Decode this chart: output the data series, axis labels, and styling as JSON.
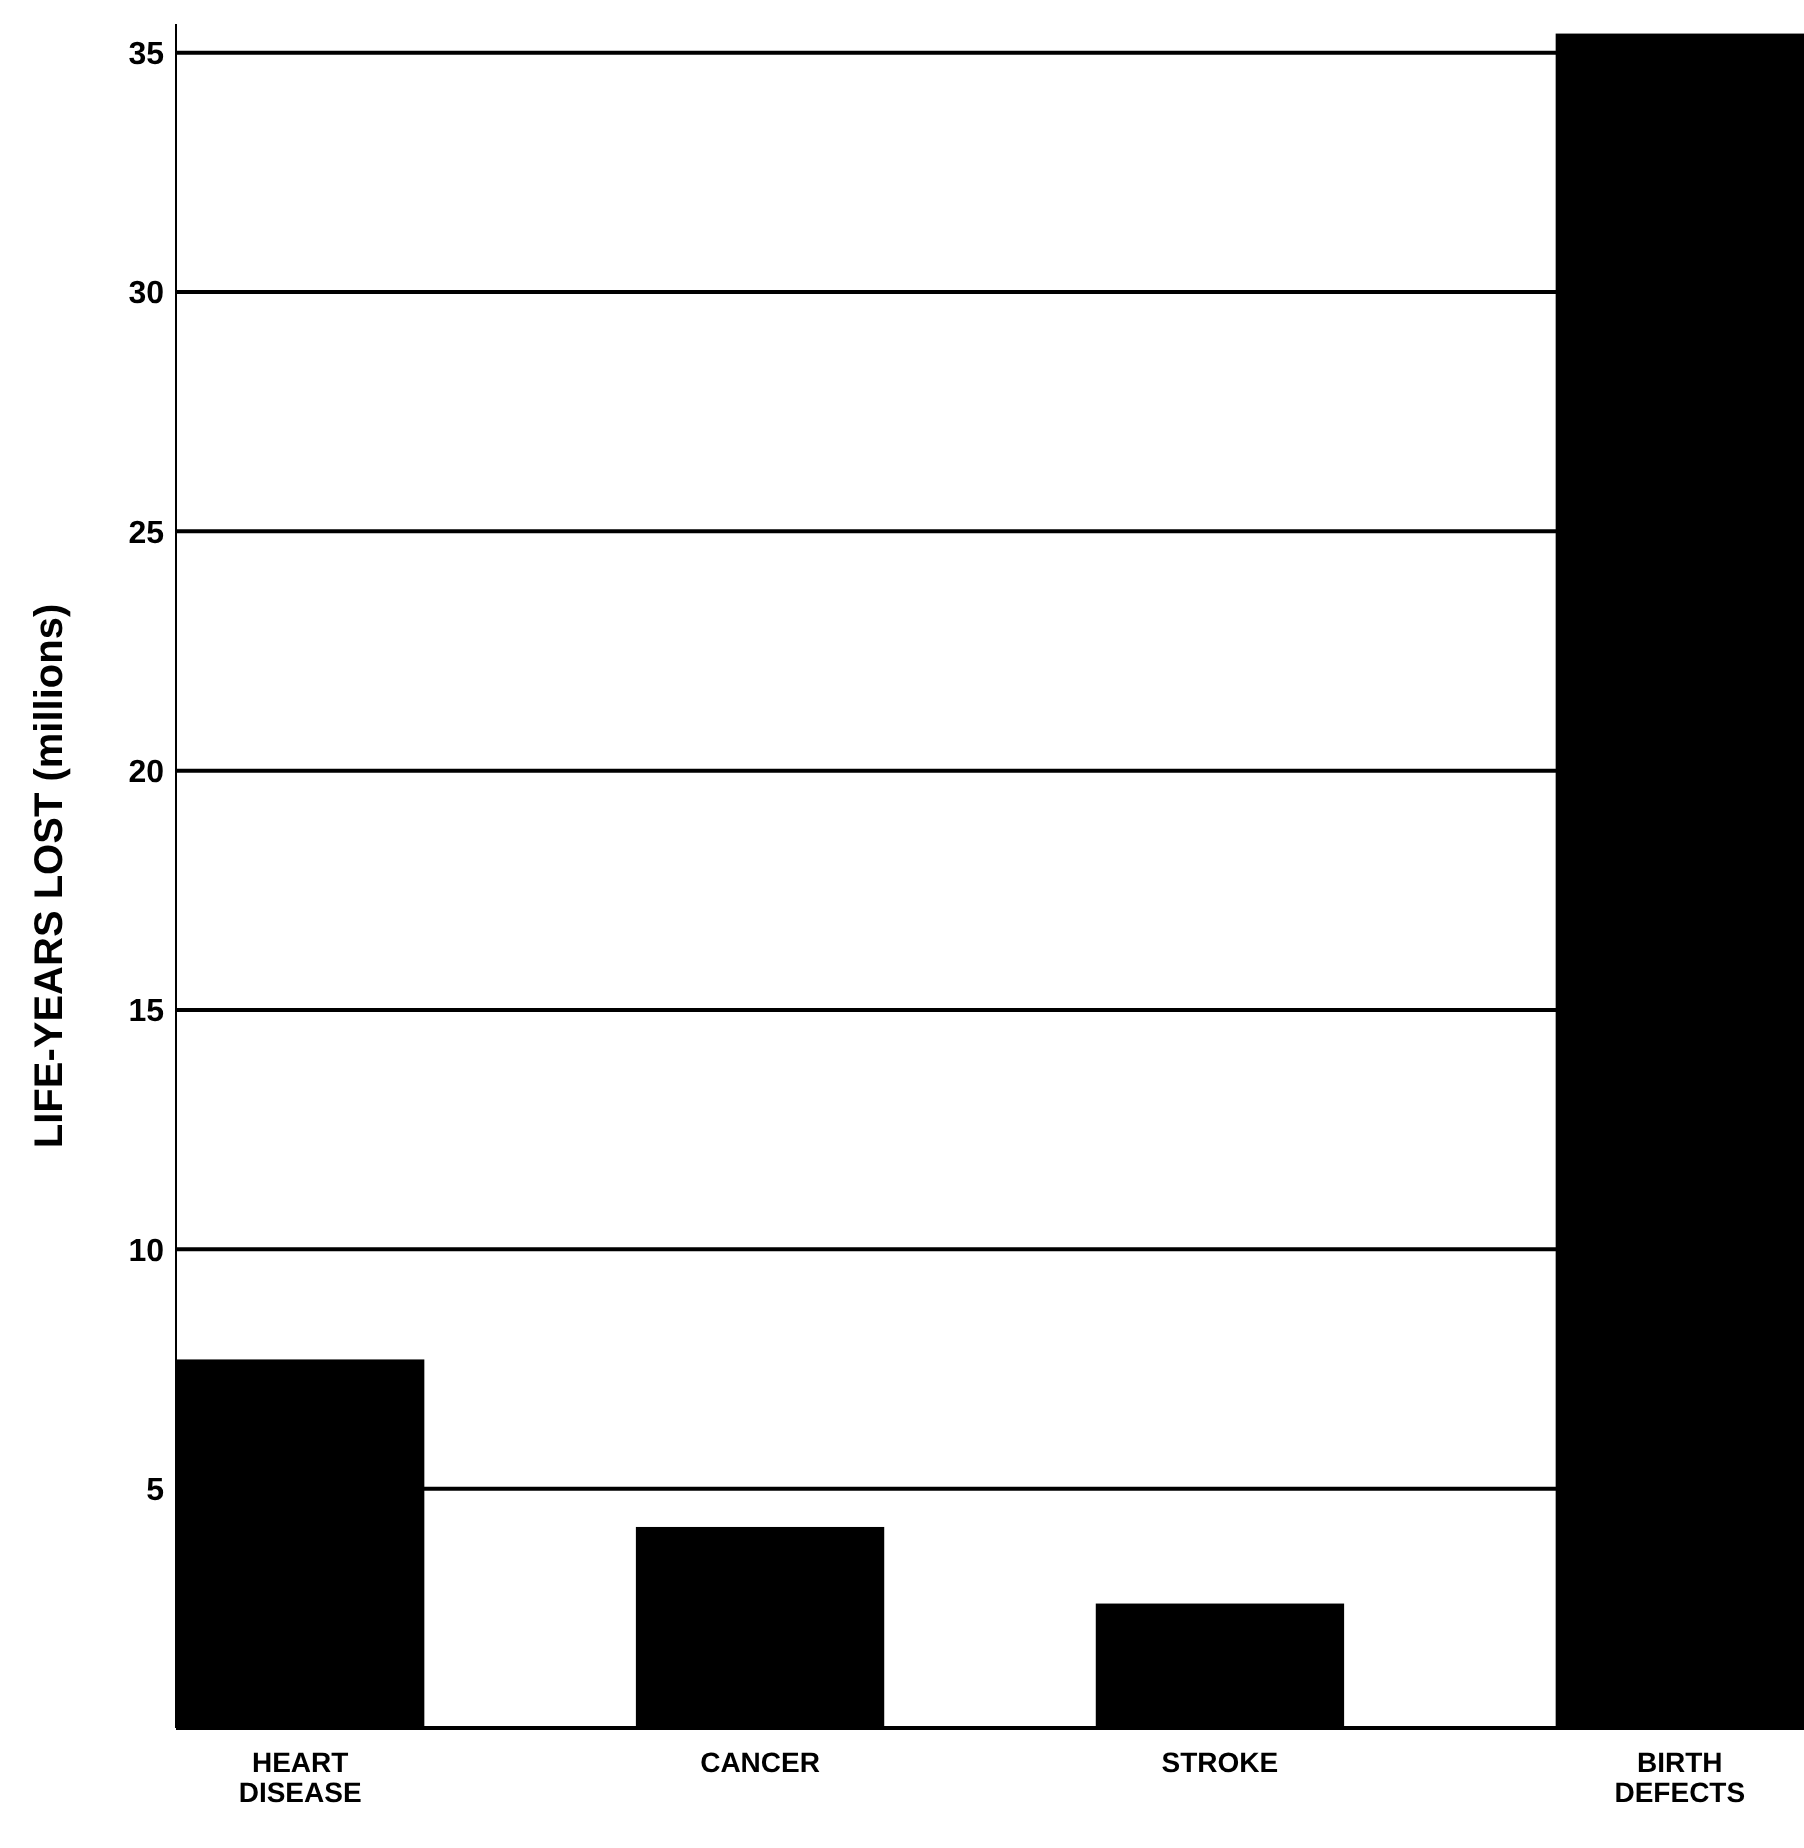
{
  "chart_data": {
    "type": "bar",
    "ylabel": "LIFE-YEARS LOST (millions)",
    "categories": [
      "HEART DISEASE",
      "CANCER",
      "STROKE",
      "BIRTH DEFECTS"
    ],
    "values": [
      7.7,
      4.2,
      2.6,
      35.4
    ],
    "color": "#000000",
    "ylim": [
      0,
      35.6
    ],
    "yticks": [
      5,
      10,
      15,
      20,
      25,
      30,
      35
    ],
    "grid": "y"
  }
}
